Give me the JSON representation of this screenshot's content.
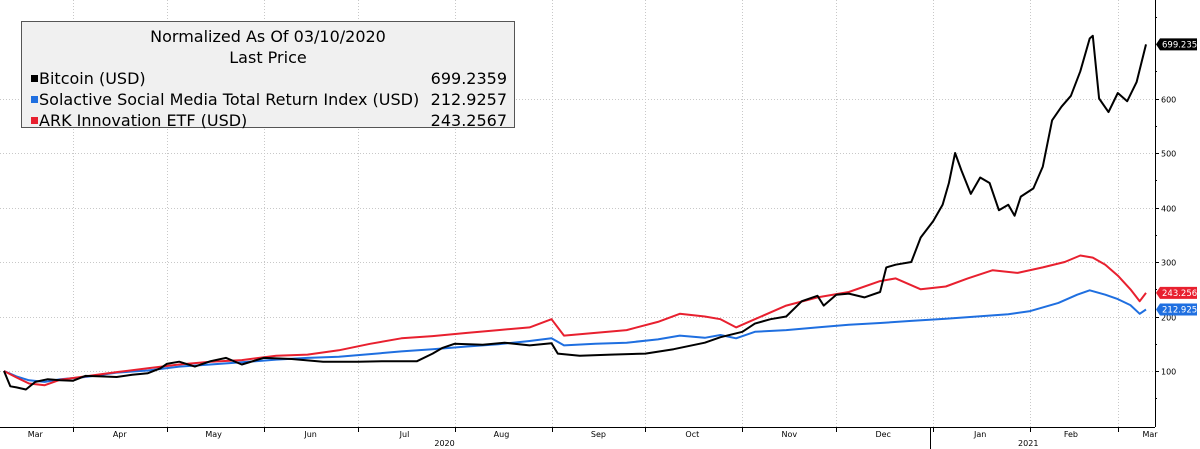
{
  "legend": {
    "title": "Normalized As Of 03/10/2020",
    "subtitle": "Last Price"
  },
  "chart_data": {
    "type": "line",
    "ylim": [
      40,
      760
    ],
    "yticks": [
      100,
      200,
      300,
      400,
      500,
      600
    ],
    "grid": true,
    "legend_position": "top-left",
    "x_month_labels": [
      "Mar",
      "Apr",
      "May",
      "Jun",
      "Jul",
      "Aug",
      "Sep",
      "Oct",
      "Nov",
      "Dec",
      "Jan",
      "Feb",
      "Mar"
    ],
    "x_year_labels": [
      "2020",
      "2021"
    ],
    "series": [
      {
        "name": "Bitcoin (USD)",
        "last_value": "699.2359",
        "color": "#000000",
        "points": [
          [
            "2020-03-10",
            100
          ],
          [
            "2020-03-12",
            72
          ],
          [
            "2020-03-14",
            70
          ],
          [
            "2020-03-17",
            66
          ],
          [
            "2020-03-20",
            80
          ],
          [
            "2020-03-24",
            85
          ],
          [
            "2020-03-28",
            83
          ],
          [
            "2020-04-01",
            82
          ],
          [
            "2020-04-05",
            91
          ],
          [
            "2020-04-10",
            90
          ],
          [
            "2020-04-15",
            89
          ],
          [
            "2020-04-20",
            93
          ],
          [
            "2020-04-25",
            96
          ],
          [
            "2020-04-29",
            105
          ],
          [
            "2020-05-01",
            113
          ],
          [
            "2020-05-05",
            117
          ],
          [
            "2020-05-10",
            108
          ],
          [
            "2020-05-15",
            118
          ],
          [
            "2020-05-20",
            124
          ],
          [
            "2020-05-25",
            112
          ],
          [
            "2020-06-01",
            124
          ],
          [
            "2020-06-10",
            122
          ],
          [
            "2020-06-20",
            117
          ],
          [
            "2020-07-01",
            117
          ],
          [
            "2020-07-10",
            118
          ],
          [
            "2020-07-20",
            118
          ],
          [
            "2020-07-25",
            132
          ],
          [
            "2020-07-28",
            142
          ],
          [
            "2020-08-01",
            150
          ],
          [
            "2020-08-10",
            148
          ],
          [
            "2020-08-17",
            152
          ],
          [
            "2020-08-25",
            147
          ],
          [
            "2020-09-01",
            151
          ],
          [
            "2020-09-03",
            132
          ],
          [
            "2020-09-10",
            128
          ],
          [
            "2020-09-20",
            130
          ],
          [
            "2020-10-01",
            132
          ],
          [
            "2020-10-10",
            140
          ],
          [
            "2020-10-20",
            152
          ],
          [
            "2020-10-25",
            162
          ],
          [
            "2020-11-01",
            172
          ],
          [
            "2020-11-05",
            187
          ],
          [
            "2020-11-10",
            195
          ],
          [
            "2020-11-15",
            200
          ],
          [
            "2020-11-20",
            228
          ],
          [
            "2020-11-25",
            238
          ],
          [
            "2020-11-27",
            220
          ],
          [
            "2020-12-01",
            240
          ],
          [
            "2020-12-05",
            242
          ],
          [
            "2020-12-10",
            235
          ],
          [
            "2020-12-15",
            245
          ],
          [
            "2020-12-17",
            290
          ],
          [
            "2020-12-20",
            295
          ],
          [
            "2020-12-25",
            300
          ],
          [
            "2020-12-28",
            345
          ],
          [
            "2021-01-01",
            375
          ],
          [
            "2021-01-04",
            405
          ],
          [
            "2021-01-06",
            445
          ],
          [
            "2021-01-08",
            500
          ],
          [
            "2021-01-10",
            468
          ],
          [
            "2021-01-13",
            425
          ],
          [
            "2021-01-16",
            455
          ],
          [
            "2021-01-19",
            445
          ],
          [
            "2021-01-22",
            395
          ],
          [
            "2021-01-25",
            405
          ],
          [
            "2021-01-27",
            385
          ],
          [
            "2021-01-29",
            420
          ],
          [
            "2021-02-02",
            435
          ],
          [
            "2021-02-05",
            475
          ],
          [
            "2021-02-08",
            560
          ],
          [
            "2021-02-11",
            585
          ],
          [
            "2021-02-14",
            605
          ],
          [
            "2021-02-17",
            650
          ],
          [
            "2021-02-20",
            710
          ],
          [
            "2021-02-21",
            715
          ],
          [
            "2021-02-23",
            600
          ],
          [
            "2021-02-26",
            575
          ],
          [
            "2021-03-01",
            610
          ],
          [
            "2021-03-04",
            595
          ],
          [
            "2021-03-07",
            630
          ],
          [
            "2021-03-10",
            699.2359
          ]
        ]
      },
      {
        "name": "Solactive Social Media Total Return Index (USD)",
        "last_value": "212.9257",
        "color": "#1f6fe0",
        "points": [
          [
            "2020-03-10",
            100
          ],
          [
            "2020-03-14",
            90
          ],
          [
            "2020-03-18",
            83
          ],
          [
            "2020-03-23",
            80
          ],
          [
            "2020-03-28",
            85
          ],
          [
            "2020-04-05",
            89
          ],
          [
            "2020-04-15",
            97
          ],
          [
            "2020-04-25",
            101
          ],
          [
            "2020-05-05",
            108
          ],
          [
            "2020-05-15",
            112
          ],
          [
            "2020-05-25",
            116
          ],
          [
            "2020-06-05",
            121
          ],
          [
            "2020-06-15",
            124
          ],
          [
            "2020-06-25",
            126
          ],
          [
            "2020-07-05",
            131
          ],
          [
            "2020-07-15",
            136
          ],
          [
            "2020-07-25",
            140
          ],
          [
            "2020-08-05",
            145
          ],
          [
            "2020-08-15",
            149
          ],
          [
            "2020-08-25",
            155
          ],
          [
            "2020-09-01",
            160
          ],
          [
            "2020-09-05",
            147
          ],
          [
            "2020-09-15",
            150
          ],
          [
            "2020-09-25",
            152
          ],
          [
            "2020-10-05",
            158
          ],
          [
            "2020-10-12",
            165
          ],
          [
            "2020-10-20",
            161
          ],
          [
            "2020-10-25",
            166
          ],
          [
            "2020-10-30",
            160
          ],
          [
            "2020-11-05",
            172
          ],
          [
            "2020-11-15",
            175
          ],
          [
            "2020-11-25",
            180
          ],
          [
            "2020-12-05",
            185
          ],
          [
            "2020-12-15",
            188
          ],
          [
            "2020-12-25",
            192
          ],
          [
            "2021-01-05",
            196
          ],
          [
            "2021-01-15",
            200
          ],
          [
            "2021-01-25",
            204
          ],
          [
            "2021-02-01",
            210
          ],
          [
            "2021-02-10",
            225
          ],
          [
            "2021-02-16",
            240
          ],
          [
            "2021-02-20",
            248
          ],
          [
            "2021-02-25",
            240
          ],
          [
            "2021-03-01",
            232
          ],
          [
            "2021-03-05",
            221
          ],
          [
            "2021-03-08",
            205
          ],
          [
            "2021-03-10",
            212.9257
          ]
        ]
      },
      {
        "name": "ARK Innovation ETF (USD)",
        "last_value": "243.2567",
        "color": "#e8202f",
        "points": [
          [
            "2020-03-10",
            100
          ],
          [
            "2020-03-14",
            88
          ],
          [
            "2020-03-18",
            77
          ],
          [
            "2020-03-23",
            74
          ],
          [
            "2020-03-28",
            84
          ],
          [
            "2020-04-05",
            90
          ],
          [
            "2020-04-15",
            98
          ],
          [
            "2020-04-25",
            105
          ],
          [
            "2020-05-05",
            112
          ],
          [
            "2020-05-15",
            117
          ],
          [
            "2020-05-25",
            120
          ],
          [
            "2020-06-05",
            128
          ],
          [
            "2020-06-15",
            130
          ],
          [
            "2020-06-25",
            138
          ],
          [
            "2020-07-05",
            150
          ],
          [
            "2020-07-15",
            160
          ],
          [
            "2020-07-25",
            164
          ],
          [
            "2020-08-05",
            170
          ],
          [
            "2020-08-15",
            175
          ],
          [
            "2020-08-25",
            180
          ],
          [
            "2020-09-01",
            195
          ],
          [
            "2020-09-05",
            165
          ],
          [
            "2020-09-15",
            170
          ],
          [
            "2020-09-25",
            175
          ],
          [
            "2020-10-05",
            190
          ],
          [
            "2020-10-12",
            205
          ],
          [
            "2020-10-20",
            200
          ],
          [
            "2020-10-25",
            195
          ],
          [
            "2020-10-30",
            180
          ],
          [
            "2020-11-05",
            195
          ],
          [
            "2020-11-15",
            220
          ],
          [
            "2020-11-25",
            235
          ],
          [
            "2020-12-05",
            245
          ],
          [
            "2020-12-15",
            265
          ],
          [
            "2020-12-20",
            270
          ],
          [
            "2020-12-28",
            250
          ],
          [
            "2021-01-05",
            255
          ],
          [
            "2021-01-12",
            270
          ],
          [
            "2021-01-20",
            285
          ],
          [
            "2021-01-28",
            280
          ],
          [
            "2021-02-05",
            290
          ],
          [
            "2021-02-12",
            300
          ],
          [
            "2021-02-17",
            312
          ],
          [
            "2021-02-21",
            308
          ],
          [
            "2021-02-25",
            295
          ],
          [
            "2021-03-01",
            275
          ],
          [
            "2021-03-05",
            250
          ],
          [
            "2021-03-08",
            228
          ],
          [
            "2021-03-10",
            243.2567
          ]
        ]
      }
    ]
  }
}
